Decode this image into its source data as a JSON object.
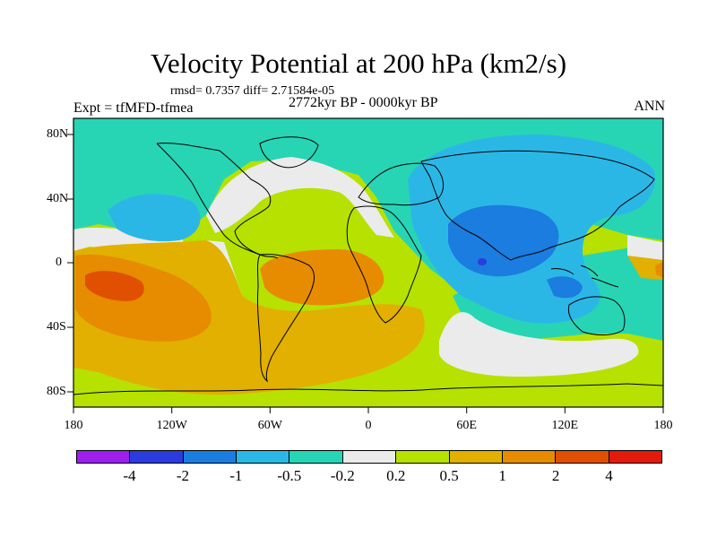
{
  "title": "Velocity Potential at 200 hPa (km2/s)",
  "subtitle_stats": "rmsd= 0.7357 diff= 2.71584e-05",
  "experiment": "Expt = tfMFD-tfmea",
  "period": "2772kyr BP - 0000kyr BP",
  "season": "ANN",
  "map": {
    "type": "filled-contour world map",
    "projection": "cylindrical equidistant",
    "lon_range": [
      -180,
      180
    ],
    "lat_range": [
      -90,
      90
    ],
    "lon_ticks": [
      "180",
      "120W",
      "60W",
      "0",
      "60E",
      "120E",
      "180"
    ],
    "lat_ticks": [
      "80N",
      "40N",
      "0",
      "40S",
      "80S"
    ]
  },
  "colorbar": {
    "colors": [
      "#9f1fef",
      "#2b3bdd",
      "#1a7ddf",
      "#2bb7e6",
      "#27d5b5",
      "#ebebeb",
      "#b7e100",
      "#e1b000",
      "#e78b00",
      "#e14f00",
      "#e31b0c"
    ],
    "labels": [
      "-4",
      "-2",
      "-1",
      "-0.5",
      "-0.2",
      "0.2",
      "0.5",
      "1",
      "2",
      "4"
    ]
  }
}
